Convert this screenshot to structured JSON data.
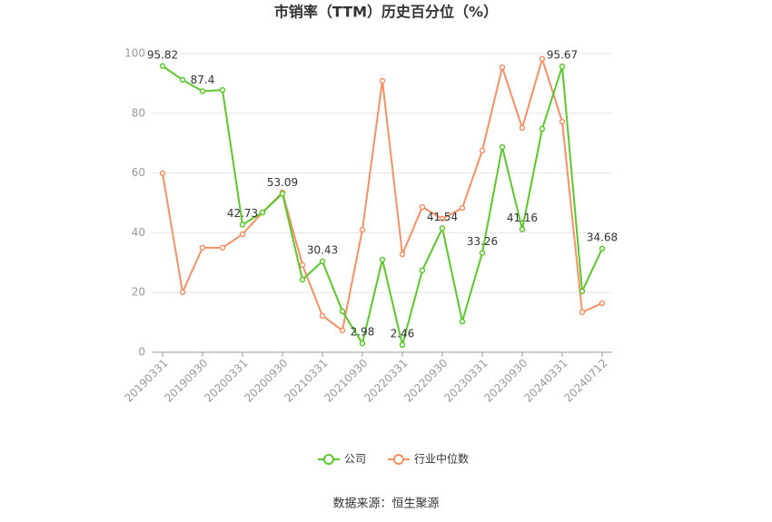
{
  "chart_data": {
    "type": "line",
    "title": "市销率（TTM）历史百分位（%）",
    "source": "数据来源：恒生聚源",
    "categories": [
      "20190331",
      null,
      "20190930",
      null,
      "20200331",
      null,
      "20200930",
      null,
      "20210331",
      null,
      "20210930",
      null,
      "20220331",
      null,
      "20220930",
      null,
      "20230331",
      null,
      "20230930",
      null,
      "20240331",
      null,
      "20240712"
    ],
    "series": [
      {
        "name": "公司",
        "color": "#5cc62b",
        "values": [
          95.82,
          91.2,
          87.4,
          87.8,
          42.73,
          46.8,
          53.09,
          24.3,
          30.43,
          13.7,
          2.98,
          31.0,
          2.46,
          27.4,
          41.54,
          10.3,
          33.26,
          68.7,
          41.16,
          74.8,
          95.67,
          20.4,
          34.68
        ]
      },
      {
        "name": "行业中位数",
        "color": "#f59066",
        "values": [
          59.9,
          20.1,
          35.0,
          35.0,
          39.5,
          46.8,
          53.5,
          29.2,
          12.2,
          7.3,
          41.0,
          90.9,
          32.8,
          48.6,
          44.7,
          48.3,
          67.5,
          95.4,
          75.1,
          98.2,
          77.2,
          13.4,
          16.4
        ]
      }
    ],
    "ylim": [
      0,
      100
    ],
    "yticks": [
      0,
      20,
      40,
      60,
      80,
      100
    ],
    "grid": true,
    "legend": "bottom"
  }
}
